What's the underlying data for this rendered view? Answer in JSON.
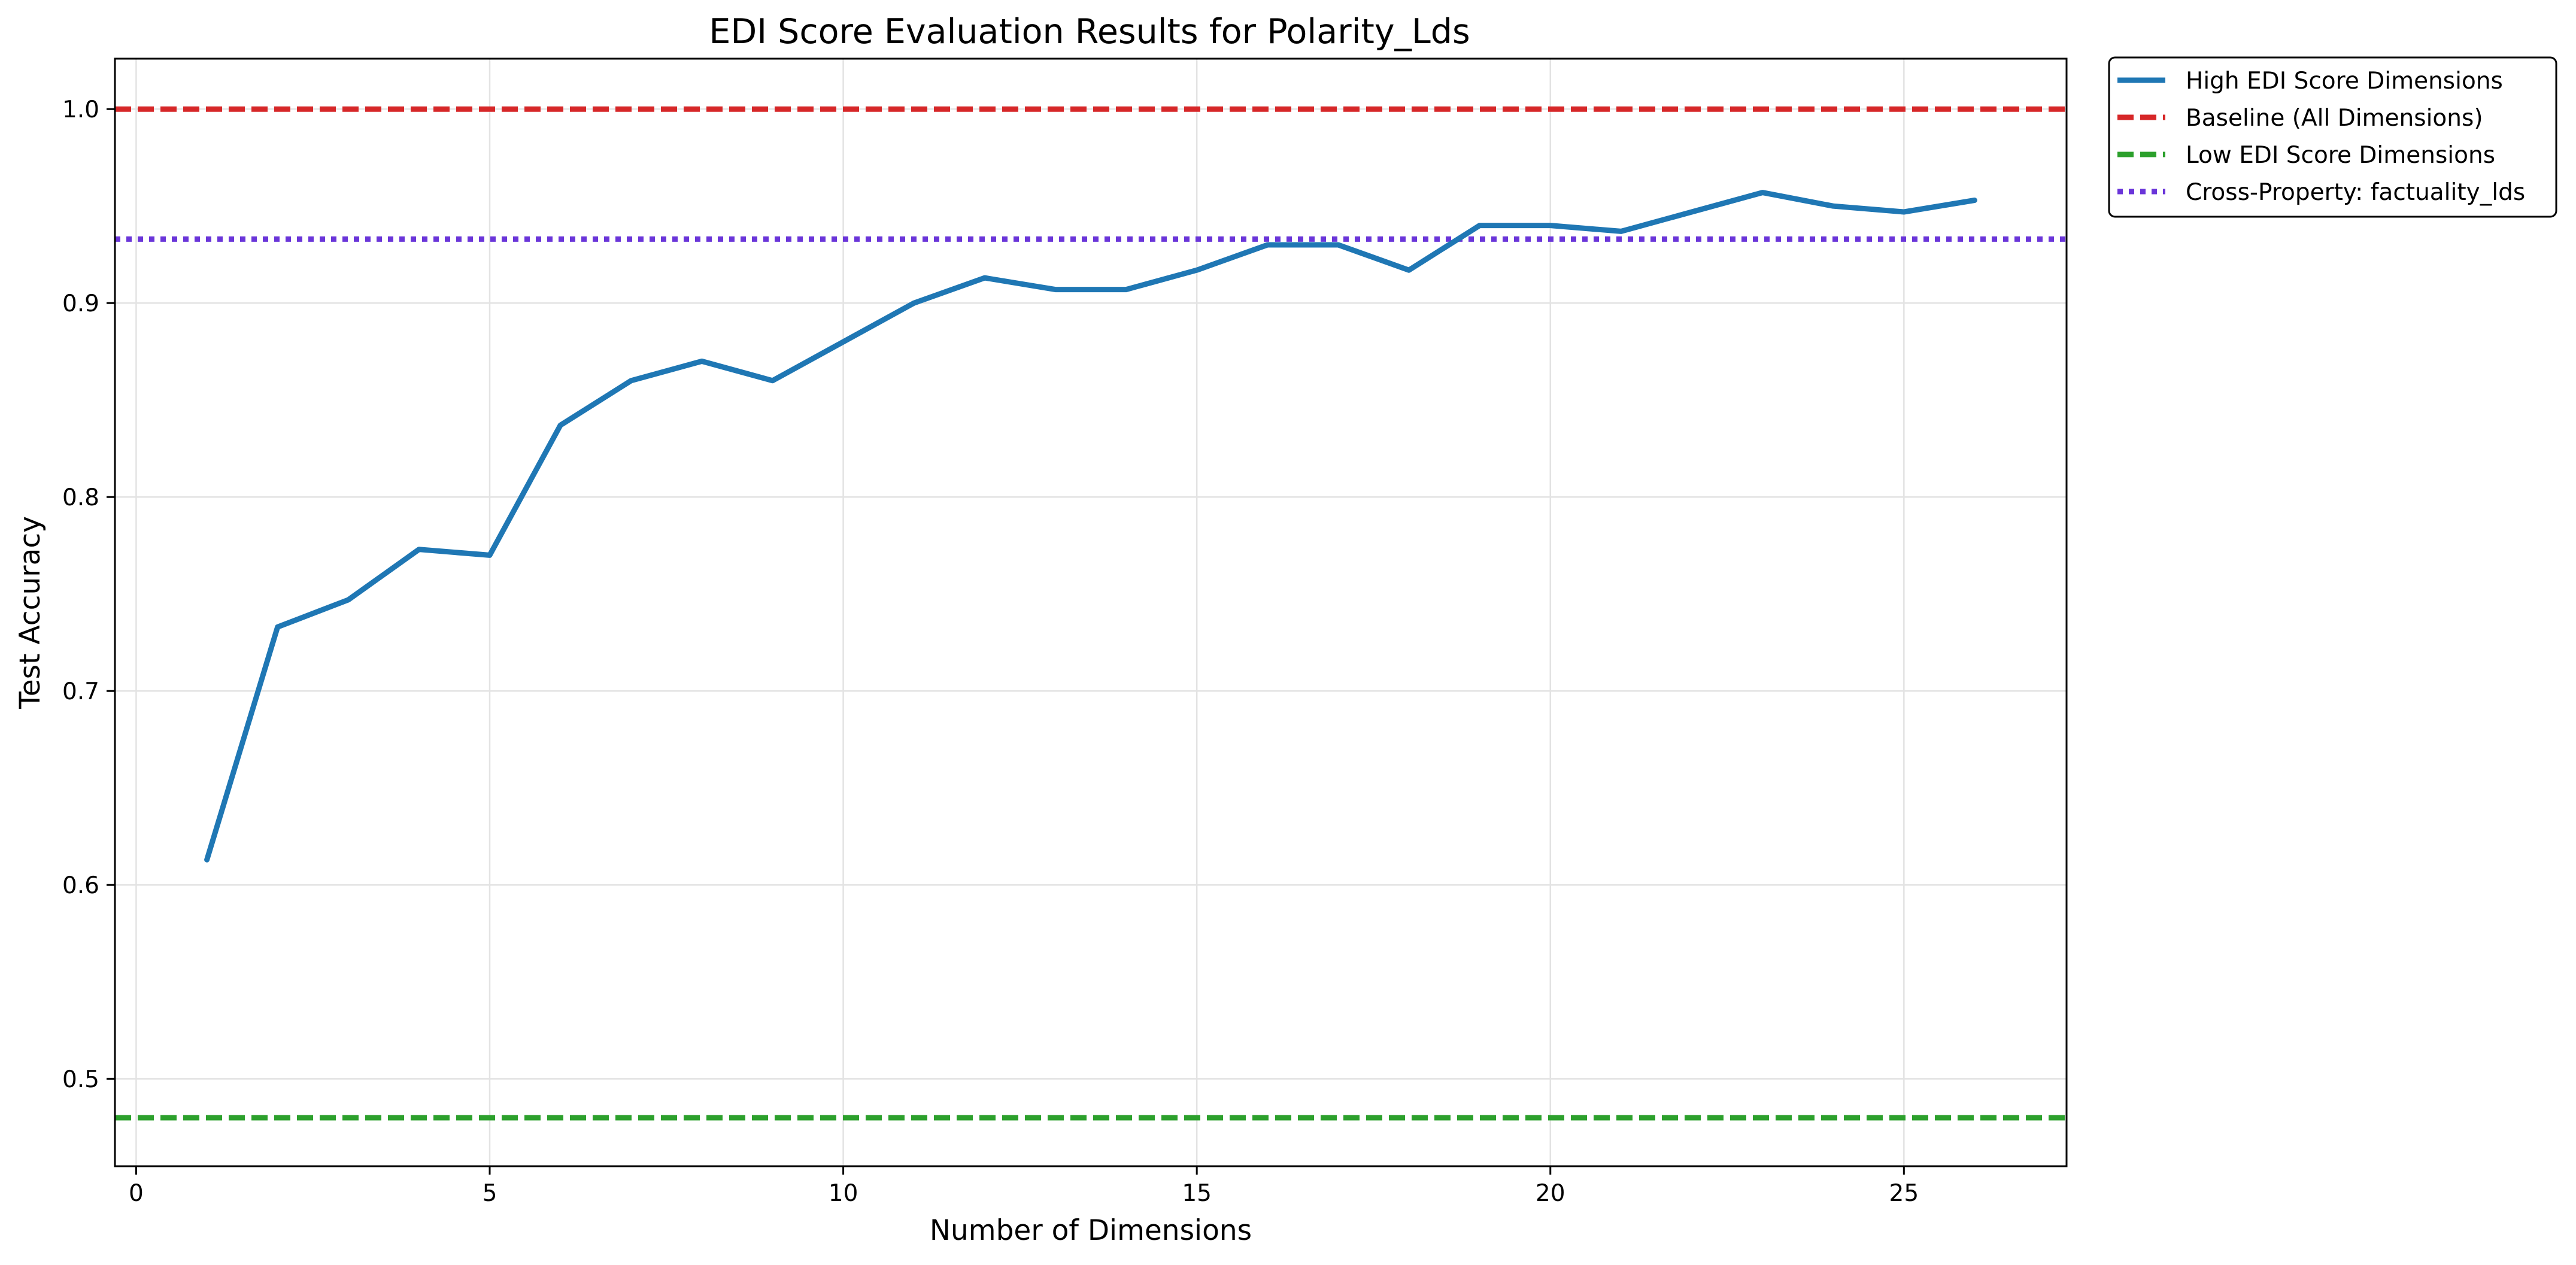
{
  "chart_data": {
    "type": "line",
    "title": "EDI Score Evaluation Results for Polarity_Lds",
    "xlabel": "Number of Dimensions",
    "ylabel": "Test Accuracy",
    "xlim": [
      -0.3,
      27.3
    ],
    "ylim": [
      0.455,
      1.026
    ],
    "xticks": [
      0,
      5,
      10,
      15,
      20,
      25
    ],
    "yticks": [
      0.5,
      0.6,
      0.7,
      0.8,
      0.9,
      1.0
    ],
    "xtick_labels": [
      "0",
      "5",
      "10",
      "15",
      "20",
      "25"
    ],
    "ytick_labels": [
      "0.5",
      "0.6",
      "0.7",
      "0.8",
      "0.9",
      "1.0"
    ],
    "grid": true,
    "legend_position": "outside top-right",
    "series": [
      {
        "name": "High EDI Score Dimensions",
        "color": "#1f77b4",
        "style": "solid",
        "x": [
          1,
          2,
          3,
          4,
          5,
          6,
          7,
          8,
          9,
          10,
          11,
          12,
          13,
          14,
          15,
          16,
          17,
          18,
          19,
          20,
          21,
          22,
          23,
          24,
          25,
          26
        ],
        "y": [
          0.613,
          0.733,
          0.747,
          0.773,
          0.77,
          0.837,
          0.86,
          0.87,
          0.86,
          0.88,
          0.9,
          0.913,
          0.907,
          0.907,
          0.917,
          0.93,
          0.93,
          0.917,
          0.94,
          0.94,
          0.937,
          0.947,
          0.957,
          0.95,
          0.947,
          0.953
        ]
      },
      {
        "name": "Baseline (All Dimensions)",
        "color": "#d62728",
        "style": "dashed",
        "y_constant": 1.0
      },
      {
        "name": "Low EDI Score Dimensions",
        "color": "#2ca02c",
        "style": "dashed",
        "y_constant": 0.48
      },
      {
        "name": "Cross-Property: factuality_lds",
        "color": "#6a35d9",
        "style": "dotted",
        "y_constant": 0.933
      }
    ]
  }
}
